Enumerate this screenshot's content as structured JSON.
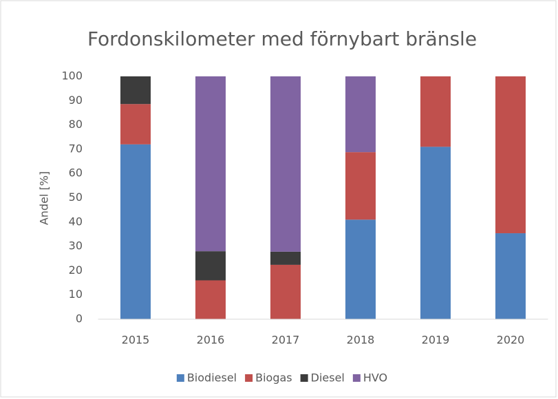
{
  "chart_data": {
    "type": "stacked_bar",
    "title": "Fordonskilometer med förnybart bränsle",
    "y_label": "Andel [%]",
    "categories": [
      "2015",
      "2016",
      "2017",
      "2018",
      "2019",
      "2020"
    ],
    "series": [
      {
        "name": "Biodiesel",
        "color": "#4f81bd",
        "values": [
          72,
          0,
          0,
          41,
          71,
          35.4
        ]
      },
      {
        "name": "Biogas",
        "color": "#c0504d",
        "values": [
          16.6,
          16,
          22.4,
          27.8,
          29,
          64.6
        ]
      },
      {
        "name": "Diesel",
        "color": "#3c3c3c",
        "values": [
          11.4,
          12,
          5.4,
          0,
          0,
          0
        ]
      },
      {
        "name": "HVO",
        "color": "#8064a2",
        "values": [
          0,
          72,
          72.2,
          31.2,
          0,
          0
        ]
      }
    ],
    "ylim": [
      0,
      100
    ],
    "yticks": [
      0,
      10,
      20,
      30,
      40,
      50,
      60,
      70,
      80,
      90,
      100
    ],
    "grid": false,
    "legend": "bottom"
  }
}
